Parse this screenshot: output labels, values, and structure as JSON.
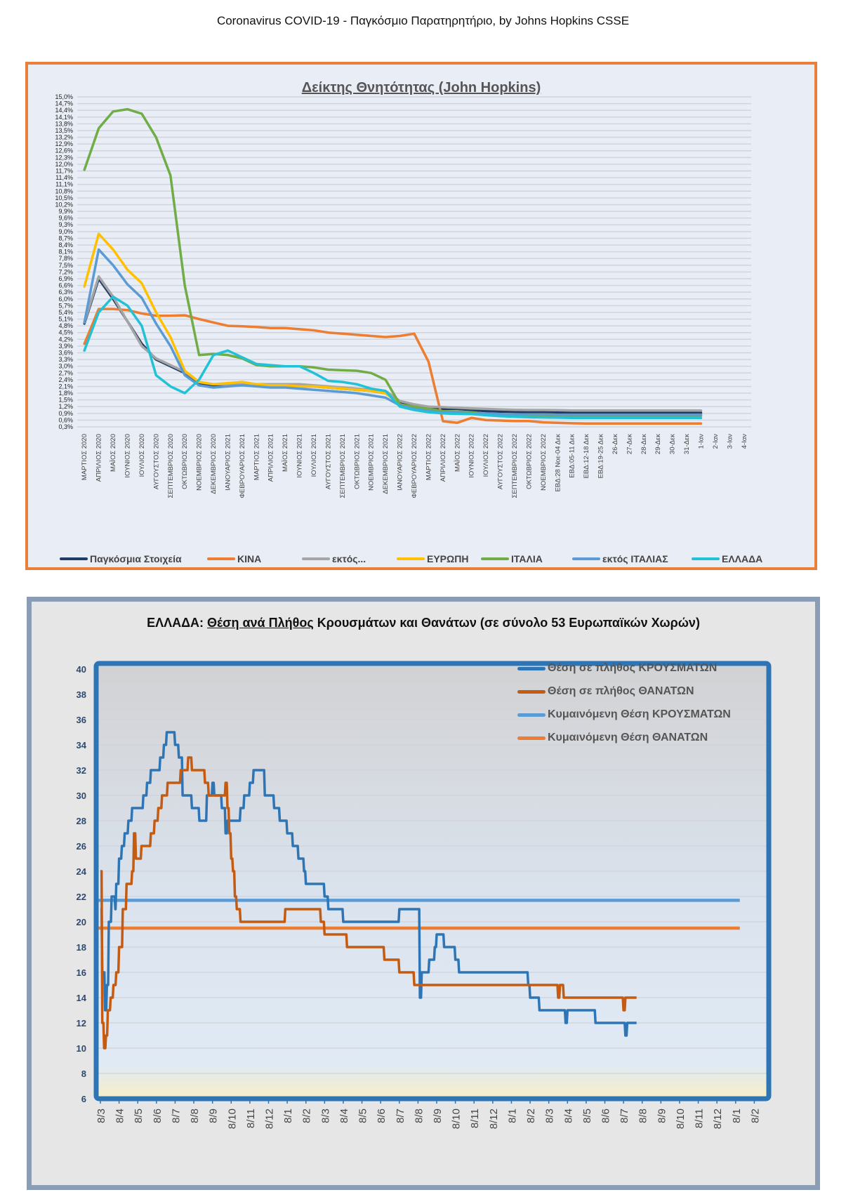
{
  "page": {
    "title": "Coronavirus COVID-19  -  Παγκόσμιο Παρατηρητήριο,  by Johns Hopkins CSSE"
  },
  "chart_data": [
    {
      "type": "line",
      "title": "Δείκτης Θνητότητας (John Hopkins)",
      "xlabel": "",
      "ylabel": "",
      "ylim": [
        0.3,
        15.0
      ],
      "y_format": "percent-comma-1dp",
      "y_ticks": [
        "15,0%",
        "14,7%",
        "14,4%",
        "14,1%",
        "13,8%",
        "13,5%",
        "13,2%",
        "12,9%",
        "12,6%",
        "12,3%",
        "12,0%",
        "11,7%",
        "11,4%",
        "11,1%",
        "10,8%",
        "10,5%",
        "10,2%",
        "9,9%",
        "9,6%",
        "9,3%",
        "9,0%",
        "8,7%",
        "8,4%",
        "8,1%",
        "7,8%",
        "7,5%",
        "7,2%",
        "6,9%",
        "6,6%",
        "6,3%",
        "6,0%",
        "5,7%",
        "5,4%",
        "5,1%",
        "4,8%",
        "4,5%",
        "4,2%",
        "3,9%",
        "3,6%",
        "3,3%",
        "3,0%",
        "2,7%",
        "2,4%",
        "2,1%",
        "1,8%",
        "1,5%",
        "1,2%",
        "0,9%",
        "0,6%",
        "0,3%"
      ],
      "grid": true,
      "legend_position": "bottom",
      "categories": [
        "ΜΑΡΤΙΟΣ 2020",
        "ΑΠΡΙΛΙΟΣ 2020",
        "ΜΑΪΟΣ 2020",
        "ΙΟΥΝΙΟΣ 2020",
        "ΙΟΥΛΙΟΣ 2020",
        "ΑΥΓΟΥΣΤΟΣ 2020",
        "ΣΕΠΤΕΜΒΡΙΟΣ 2020",
        "ΟΚΤΩΒΡΙΟΣ 2020",
        "ΝΟΕΜΒΡΙΟΣ 2020",
        "ΔΕΚΕΜΒΡΙΟΣ 2020",
        "ΙΑΝΟΥΑΡΙΟΣ 2021",
        "ΦΕΒΡΟΥΑΡΙΟΣ 2021",
        "ΜΑΡΤΙΟΣ 2021",
        "ΑΠΡΙΛΙΟΣ 2021",
        "ΜΑΪΟΣ 2021",
        "ΙΟΥΝΙΟΣ 2021",
        "ΙΟΥΛΙΟΣ 2021",
        "ΑΥΓΟΥΣΤΟΣ 2021",
        "ΣΕΠΤΕΜΒΡΙΟΣ 2021",
        "ΟΚΤΩΒΡΙΟΣ 2021",
        "ΝΟΕΜΒΡΙΟΣ 2021",
        "ΔΕΚΕΜΒΡΙΟΣ 2021",
        "ΙΑΝΟΥΑΡΙΟΣ 2022",
        "ΦΕΒΡΟΥΑΡΙΟΣ 2022",
        "ΜΑΡΤΙΟΣ 2022",
        "ΑΠΡΙΛΙΟΣ 2022",
        "ΜΑΪΟΣ 2022",
        "ΙΟΥΝΙΟΣ 2022",
        "ΙΟΥΛΙΟΣ 2022",
        "ΑΥΓΟΥΣΤΟΣ 2022",
        "ΣΕΠΤΕΜΒΡΙΟΣ 2022",
        "ΟΚΤΩΒΡΙΟΣ 2022",
        "ΝΟΕΜΒΡΙΟΣ 2022",
        "ΕΒΔ:28 Νοε-04 Δεκ",
        "ΕΒΔ:05-11 Δεκ",
        "ΕΒΔ:12-18 Δεκ",
        "ΕΒΔ:19-25 Δεκ",
        "26-Δεκ",
        "27-Δεκ",
        "28-Δεκ",
        "29-Δεκ",
        "30-Δεκ",
        "31-Δεκ",
        "1-Ιαν",
        "2-Ιαν",
        "3-Ιαν",
        "4-Ιαν"
      ],
      "series": [
        {
          "name": "Παγκόσμια Στοιχεία",
          "color": "#1f3c66",
          "values": [
            4.9,
            6.9,
            6.0,
            5.0,
            4.0,
            3.3,
            3.0,
            2.7,
            2.2,
            2.15,
            2.2,
            2.2,
            2.2,
            2.15,
            2.15,
            2.1,
            2.1,
            2.05,
            2.0,
            1.95,
            1.9,
            1.8,
            1.4,
            1.25,
            1.15,
            1.1,
            1.1,
            1.05,
            1.0,
            0.98,
            0.96,
            0.95,
            0.95,
            0.94,
            0.94,
            0.93,
            0.93,
            0.93,
            0.93,
            0.93,
            0.93,
            0.93,
            0.93,
            0.93,
            null,
            null,
            null
          ]
        },
        {
          "name": "ΚΙΝΑ",
          "color": "#ed7d31",
          "values": [
            4.0,
            5.55,
            5.55,
            5.5,
            5.35,
            5.25,
            5.25,
            5.27,
            5.1,
            4.95,
            4.8,
            4.78,
            4.75,
            4.7,
            4.7,
            4.65,
            4.6,
            4.5,
            4.45,
            4.4,
            4.35,
            4.3,
            4.35,
            4.45,
            3.2,
            0.55,
            0.48,
            0.7,
            0.6,
            0.58,
            0.56,
            0.56,
            0.5,
            0.48,
            0.46,
            0.45,
            0.45,
            0.45,
            0.45,
            0.45,
            0.45,
            0.45,
            0.45,
            0.45,
            null,
            null,
            null
          ]
        },
        {
          "name": "εκτός...",
          "color": "#a5a5a5",
          "values": [
            4.95,
            7.0,
            6.1,
            5.0,
            3.9,
            3.35,
            3.05,
            2.75,
            2.3,
            2.2,
            2.2,
            2.25,
            2.2,
            2.2,
            2.2,
            2.2,
            2.15,
            2.1,
            2.05,
            2.0,
            1.95,
            1.9,
            1.45,
            1.3,
            1.2,
            1.18,
            1.15,
            1.12,
            1.1,
            1.08,
            1.06,
            1.05,
            1.05,
            1.04,
            1.03,
            1.03,
            1.03,
            1.03,
            1.03,
            1.03,
            1.03,
            1.03,
            1.03,
            1.03,
            null,
            null,
            null
          ]
        },
        {
          "name": "ΕΥΡΩΠΗ",
          "color": "#ffc000",
          "values": [
            6.55,
            8.9,
            8.2,
            7.3,
            6.7,
            5.4,
            4.3,
            2.8,
            2.3,
            2.2,
            2.25,
            2.3,
            2.2,
            2.15,
            2.15,
            2.1,
            2.1,
            2.05,
            2.0,
            1.95,
            1.9,
            1.8,
            1.3,
            1.15,
            1.0,
            0.95,
            0.92,
            0.9,
            0.88,
            0.87,
            0.86,
            0.85,
            0.85,
            0.84,
            0.84,
            0.84,
            0.84,
            0.84,
            0.84,
            0.84,
            0.84,
            0.84,
            0.84,
            0.84,
            null,
            null,
            null
          ]
        },
        {
          "name": "ΙΤΑΛΙΑ",
          "color": "#70ad47",
          "values": [
            11.75,
            13.6,
            14.35,
            14.45,
            14.25,
            13.2,
            11.5,
            6.6,
            3.5,
            3.55,
            3.5,
            3.35,
            3.05,
            3.0,
            3.0,
            3.0,
            2.95,
            2.85,
            2.82,
            2.8,
            2.7,
            2.4,
            1.3,
            1.2,
            1.1,
            1.0,
            0.98,
            0.95,
            0.88,
            0.86,
            0.85,
            0.83,
            0.82,
            0.81,
            0.8,
            0.8,
            0.8,
            0.8,
            0.8,
            0.8,
            0.8,
            0.8,
            0.8,
            0.8,
            null,
            null,
            null
          ]
        },
        {
          "name": "εκτός ΙΤΑΛΙΑΣ",
          "color": "#5b9bd5",
          "values": [
            4.95,
            8.2,
            7.5,
            6.65,
            6.05,
            4.9,
            3.9,
            2.6,
            2.15,
            2.05,
            2.1,
            2.15,
            2.1,
            2.05,
            2.05,
            2.0,
            1.95,
            1.9,
            1.85,
            1.8,
            1.7,
            1.6,
            1.25,
            1.1,
            1.0,
            0.95,
            0.93,
            0.9,
            0.88,
            0.87,
            0.86,
            0.85,
            0.85,
            0.84,
            0.84,
            0.84,
            0.84,
            0.84,
            0.84,
            0.84,
            0.84,
            0.84,
            0.84,
            0.84,
            null,
            null,
            null
          ]
        },
        {
          "name": "ΕΛΛΑΔΑ",
          "color": "#21c1d6",
          "values": [
            3.7,
            5.4,
            6.1,
            5.7,
            4.8,
            2.6,
            2.1,
            1.8,
            2.4,
            3.5,
            3.7,
            3.4,
            3.1,
            3.05,
            3.0,
            3.0,
            2.7,
            2.35,
            2.3,
            2.2,
            2.0,
            1.9,
            1.2,
            1.05,
            0.95,
            0.9,
            0.88,
            0.87,
            0.82,
            0.78,
            0.75,
            0.73,
            0.72,
            0.71,
            0.7,
            0.7,
            0.7,
            0.7,
            0.7,
            0.7,
            0.7,
            0.7,
            0.7,
            0.7,
            null,
            null,
            null
          ]
        }
      ]
    },
    {
      "type": "line",
      "title": "ΕΛΛΑΔΑ: Θέση ανά Πλήθος Κρουσμάτων και Θανάτων (σε σύνολο 53 Ευρωπαϊκών Χωρών)",
      "title_prefix": "ΕΛΛΑΔΑ: ",
      "title_underlined": "Θέση ανά Πλήθος",
      "title_suffix": " Κρουσμάτων και Θανάτων (σε σύνολο 53 Ευρωπαϊκών Χωρών)",
      "xlabel": "",
      "ylabel": "",
      "ylim": [
        6,
        40
      ],
      "y_ticks": [
        40,
        38,
        36,
        34,
        32,
        30,
        28,
        26,
        24,
        22,
        20,
        18,
        16,
        14,
        12,
        10,
        8,
        6
      ],
      "grid": true,
      "legend_position": "top-right",
      "x_ticks": [
        "8/3",
        "8/4",
        "8/5",
        "8/6",
        "8/7",
        "8/8",
        "8/9",
        "8/10",
        "8/11",
        "8/12",
        "8/1",
        "8/2",
        "8/3",
        "8/4",
        "8/5",
        "8/6",
        "8/7",
        "8/8",
        "8/9",
        "8/10",
        "8/11",
        "8/12",
        "8/1",
        "8/2",
        "8/3",
        "8/4",
        "8/5",
        "8/6",
        "8/7",
        "8/8",
        "8/9",
        "8/10",
        "8/11",
        "8/12",
        "8/1",
        "8/2"
      ],
      "series": [
        {
          "name": "Θέση σε πλήθος ΚΡΟΥΣΜΑΤΩΝ",
          "color": "#2e75b6",
          "style": "step",
          "points": [
            [
              0,
              21
            ],
            [
              0.1,
              16
            ],
            [
              0.25,
              13
            ],
            [
              0.35,
              15
            ],
            [
              0.45,
              20
            ],
            [
              0.6,
              22
            ],
            [
              0.8,
              21
            ],
            [
              0.85,
              23
            ],
            [
              1.0,
              25
            ],
            [
              1.15,
              26
            ],
            [
              1.3,
              27
            ],
            [
              1.5,
              28
            ],
            [
              1.7,
              29
            ],
            [
              2.3,
              30
            ],
            [
              2.5,
              31
            ],
            [
              2.7,
              32
            ],
            [
              3.2,
              33
            ],
            [
              3.4,
              34
            ],
            [
              3.55,
              35
            ],
            [
              4.0,
              34
            ],
            [
              4.2,
              33
            ],
            [
              4.4,
              30
            ],
            [
              4.9,
              29
            ],
            [
              5.3,
              28
            ],
            [
              5.7,
              30
            ],
            [
              6.0,
              31
            ],
            [
              6.1,
              30
            ],
            [
              6.5,
              29
            ],
            [
              6.7,
              27
            ],
            [
              6.8,
              28
            ],
            [
              7.2,
              28
            ],
            [
              7.5,
              29
            ],
            [
              7.7,
              30
            ],
            [
              8.0,
              31
            ],
            [
              8.2,
              32
            ],
            [
              8.8,
              30
            ],
            [
              9.3,
              29
            ],
            [
              9.6,
              28
            ],
            [
              10.0,
              27
            ],
            [
              10.3,
              26
            ],
            [
              10.6,
              25
            ],
            [
              10.9,
              24
            ],
            [
              11.0,
              23
            ],
            [
              12.0,
              22
            ],
            [
              12.2,
              21
            ],
            [
              13.0,
              20
            ],
            [
              15.9,
              20
            ],
            [
              16.0,
              21
            ],
            [
              16.9,
              21
            ],
            [
              17.1,
              14
            ],
            [
              17.2,
              16
            ],
            [
              17.6,
              17
            ],
            [
              17.9,
              18
            ],
            [
              18.0,
              19
            ],
            [
              18.4,
              18
            ],
            [
              19.0,
              17
            ],
            [
              19.2,
              16
            ],
            [
              22.9,
              15
            ],
            [
              23.0,
              14
            ],
            [
              23.5,
              13
            ],
            [
              24.9,
              12
            ],
            [
              25.0,
              13
            ],
            [
              26.5,
              12
            ],
            [
              28.0,
              12
            ],
            [
              28.1,
              11
            ],
            [
              28.2,
              12
            ],
            [
              28.7,
              12
            ]
          ]
        },
        {
          "name": "Θέση σε πλήθος ΘΑΝΑΤΩΝ",
          "color": "#c55a11",
          "style": "step",
          "points": [
            [
              0,
              24
            ],
            [
              0.1,
              12
            ],
            [
              0.2,
              10
            ],
            [
              0.3,
              11
            ],
            [
              0.4,
              13
            ],
            [
              0.55,
              14
            ],
            [
              0.7,
              15
            ],
            [
              0.85,
              16
            ],
            [
              1.0,
              18
            ],
            [
              1.2,
              21
            ],
            [
              1.4,
              23
            ],
            [
              1.7,
              24
            ],
            [
              1.8,
              27
            ],
            [
              1.9,
              25
            ],
            [
              2.2,
              26
            ],
            [
              2.7,
              27
            ],
            [
              2.9,
              28
            ],
            [
              3.1,
              29
            ],
            [
              3.3,
              30
            ],
            [
              3.6,
              31
            ],
            [
              4.3,
              32
            ],
            [
              4.7,
              33
            ],
            [
              4.9,
              32
            ],
            [
              5.6,
              31
            ],
            [
              5.8,
              30
            ],
            [
              6.7,
              31
            ],
            [
              6.8,
              29
            ],
            [
              6.9,
              27
            ],
            [
              7.0,
              25
            ],
            [
              7.1,
              24
            ],
            [
              7.2,
              22
            ],
            [
              7.3,
              21
            ],
            [
              7.5,
              20
            ],
            [
              9.9,
              21
            ],
            [
              11.8,
              20
            ],
            [
              12.0,
              19
            ],
            [
              13.2,
              18
            ],
            [
              15.2,
              17
            ],
            [
              16.0,
              16
            ],
            [
              16.8,
              15
            ],
            [
              18.0,
              15
            ],
            [
              24.5,
              14
            ],
            [
              24.6,
              15
            ],
            [
              24.8,
              14
            ],
            [
              28.0,
              13
            ],
            [
              28.1,
              14
            ],
            [
              28.7,
              14
            ]
          ]
        },
        {
          "name": "Κυμαινόμενη Θέση ΚΡΟΥΣΜΑΤΩΝ",
          "color": "#5b9bd5",
          "style": "constant",
          "value": 21.7
        },
        {
          "name": "Κυμαινόμενη Θέση ΘΑΝΑΤΩΝ",
          "color": "#ed7d31",
          "style": "constant",
          "value": 19.5
        }
      ]
    }
  ]
}
